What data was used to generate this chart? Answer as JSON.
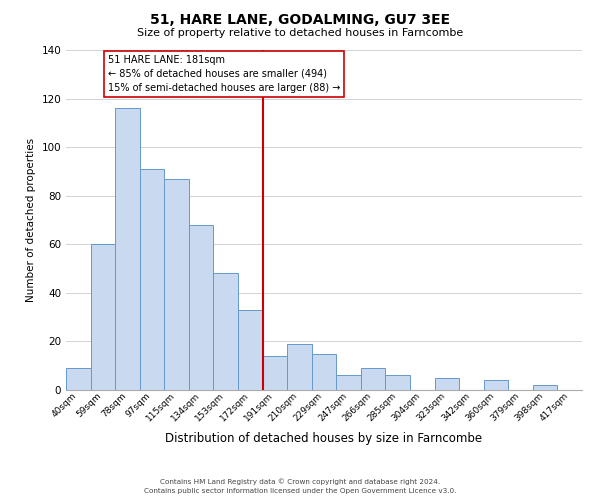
{
  "title": "51, HARE LANE, GODALMING, GU7 3EE",
  "subtitle": "Size of property relative to detached houses in Farncombe",
  "xlabel": "Distribution of detached houses by size in Farncombe",
  "ylabel": "Number of detached properties",
  "bar_labels": [
    "40sqm",
    "59sqm",
    "78sqm",
    "97sqm",
    "115sqm",
    "134sqm",
    "153sqm",
    "172sqm",
    "191sqm",
    "210sqm",
    "229sqm",
    "247sqm",
    "266sqm",
    "285sqm",
    "304sqm",
    "323sqm",
    "342sqm",
    "360sqm",
    "379sqm",
    "398sqm",
    "417sqm"
  ],
  "bar_values": [
    9,
    60,
    116,
    91,
    87,
    68,
    48,
    33,
    14,
    19,
    15,
    6,
    9,
    6,
    0,
    5,
    0,
    4,
    0,
    2,
    0
  ],
  "bar_color": "#c8d9f0",
  "bar_edge_color": "#6699cc",
  "ylim": [
    0,
    140
  ],
  "yticks": [
    0,
    20,
    40,
    60,
    80,
    100,
    120,
    140
  ],
  "property_line_index": 8,
  "property_line_color": "#cc0000",
  "annotation_title": "51 HARE LANE: 181sqm",
  "annotation_line1": "← 85% of detached houses are smaller (494)",
  "annotation_line2": "15% of semi-detached houses are larger (88) →",
  "annotation_box_color": "#ffffff",
  "annotation_box_edge_color": "#cc0000",
  "footer_line1": "Contains HM Land Registry data © Crown copyright and database right 2024.",
  "footer_line2": "Contains public sector information licensed under the Open Government Licence v3.0.",
  "background_color": "#ffffff",
  "grid_color": "#cccccc"
}
